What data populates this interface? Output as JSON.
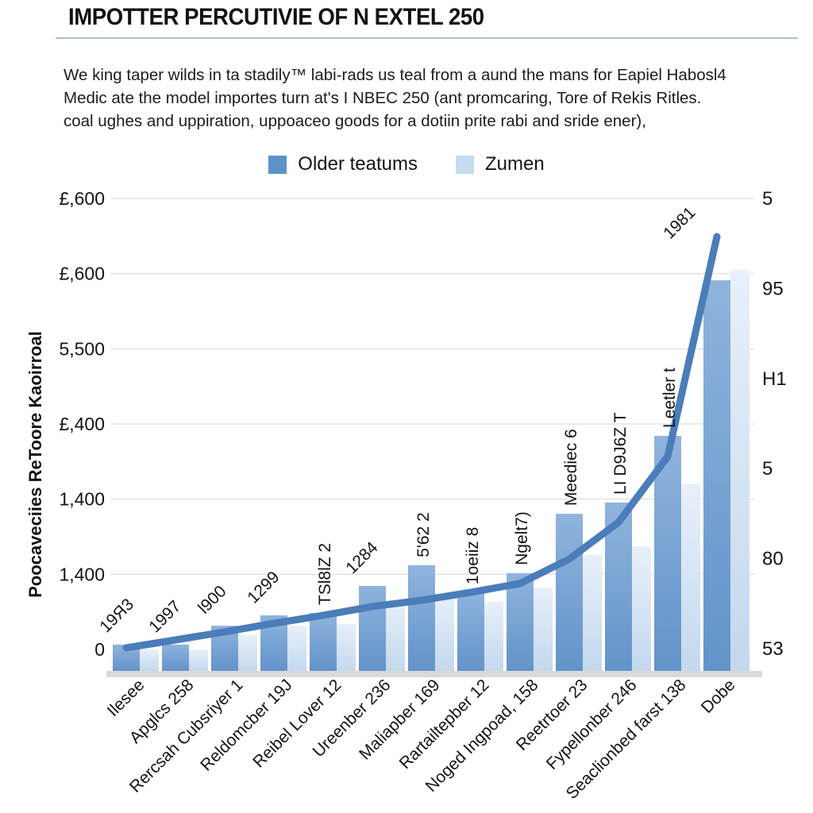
{
  "title": "IMPOTTER PERCUTIVIE OF N EXTEL 250",
  "intro": {
    "lines": [
      "We king taper wilds in ta stadily™ labi-rads us teal from a aund the mans for Eapiel Habosl4",
      "Medic ate the model importes turn at's I NBEC 250  (ant promcaring, Tore of Rekis Ritles.",
      "coal ughes and uppiration, uppoaceo goods for a dotiin prite rabi and sride ener),"
    ]
  },
  "legend": {
    "items": [
      {
        "label": "Older teatums",
        "color": "#5b93c9"
      },
      {
        "label": "Zumen",
        "color": "#c6dcf0"
      }
    ]
  },
  "chart_data": {
    "type": "bar",
    "title": "IMPOTTER PERCUTIVIE OF N EXTEL 250",
    "categories": [
      "Ilesee",
      "Apglcs 258",
      "Rercsah Cubsriyer 1",
      "Reldomcber 19J",
      "Reibel Lover 12",
      "Ureenber 236",
      "Maliapber 169",
      "Rartailtepber 12",
      "Noged Ingpoad, 158",
      "Reetrtoer 23",
      "Fypellonber 246",
      "Seaclionbed farst 138",
      "Dobe"
    ],
    "series": [
      {
        "name": "Older teatums",
        "type": "bar",
        "color_top": "#8fb4dd",
        "color_bottom": "#6293c9",
        "values": [
          89,
          89,
          153,
          188,
          196,
          288,
          358,
          266,
          331,
          532,
          570,
          796,
          1323
        ]
      },
      {
        "name": "Zumen",
        "type": "bar",
        "color_top": "#e8f0f9",
        "color_bottom": "#c3d8ee",
        "values": [
          73,
          73,
          121,
          153,
          159,
          237,
          261,
          234,
          282,
          393,
          422,
          632,
          1358
        ]
      },
      {
        "name": "trend-line",
        "type": "line",
        "color": "#4a7db9",
        "values": [
          78,
          105,
          132,
          161,
          188,
          218,
          239,
          266,
          296,
          379,
          503,
          726,
          1471
        ]
      }
    ],
    "bar_labels": [
      "19Я3",
      "1997",
      "l900",
      "1299",
      "TSl8lZ 2",
      "1284",
      "5'62 2",
      "1oeiiz 8",
      "Ngelt7)",
      "Meediec 6",
      "LI D9J6Z T",
      "Leetler t",
      "1981"
    ],
    "bar_label_orientation": [
      "diag",
      "diag",
      "diag",
      "diag",
      "vert",
      "diag",
      "vert",
      "vert",
      "vert",
      "vert",
      "vert",
      "vert",
      "diag"
    ],
    "y_axis_left": {
      "title": "Poocaveciies ReToore Kaoirroal",
      "ticks": [
        "£,600",
        "£,600",
        "5,500",
        "£,400",
        "1,400",
        "1,400",
        "0"
      ]
    },
    "y_axis_right": {
      "ticks": [
        "5",
        "95",
        "H1",
        "5",
        "80",
        "53"
      ]
    },
    "ylim": [
      0,
      1600
    ],
    "grid": true,
    "legend_position": "top-center"
  }
}
